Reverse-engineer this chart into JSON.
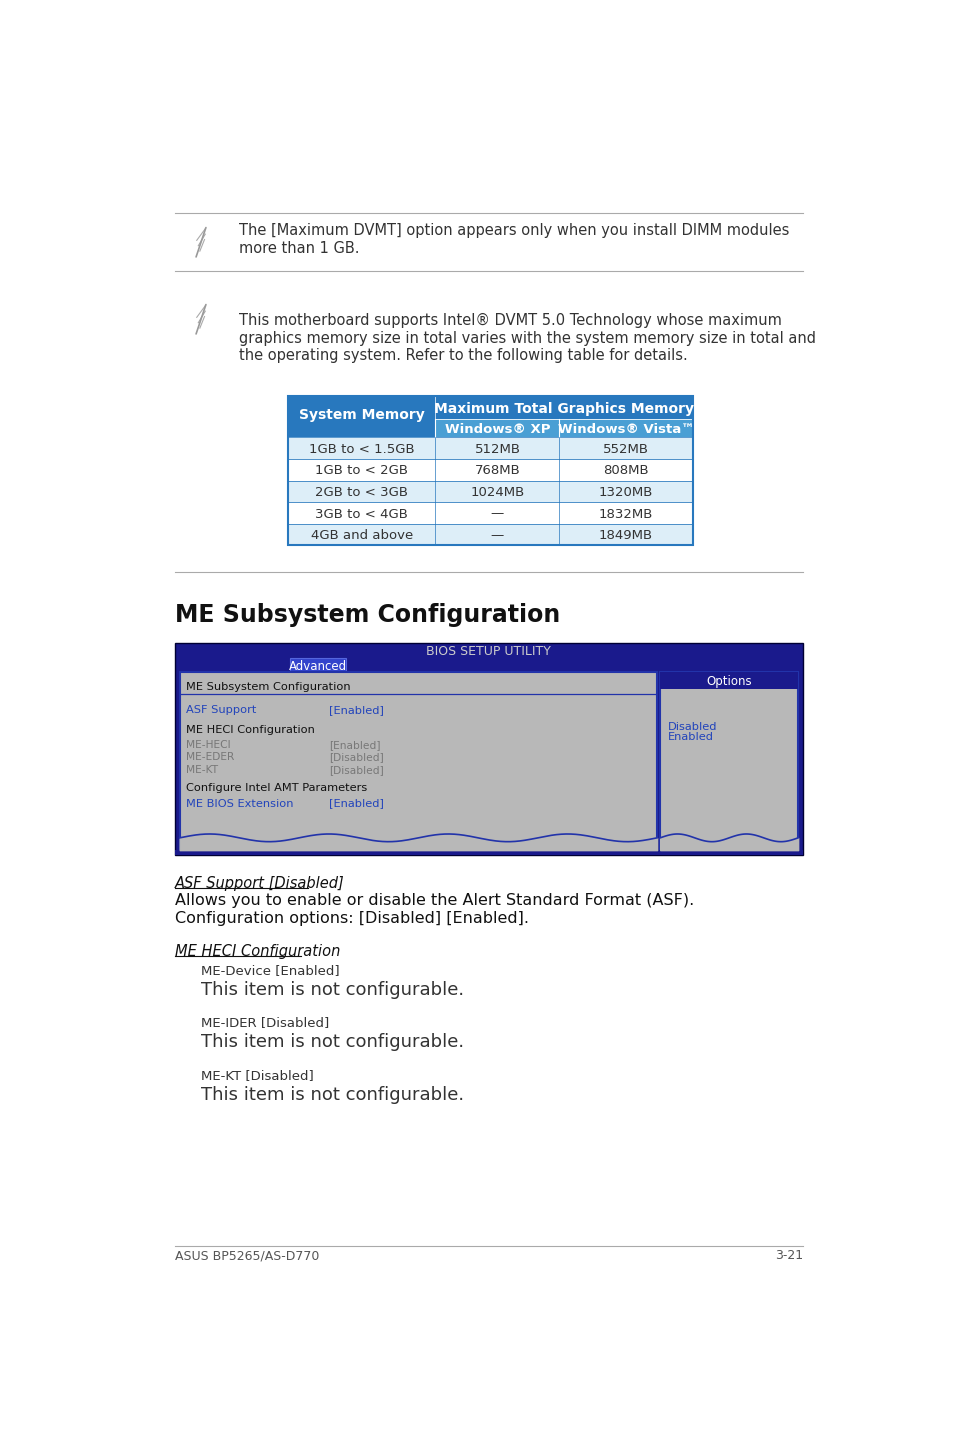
{
  "bg_color": "#ffffff",
  "note1_text": "The [Maximum DVMT] option appears only when you install DIMM modules\nmore than 1 GB.",
  "note2_text": "This motherboard supports Intel® DVMT 5.0 Technology whose maximum\ngraphics memory size in total varies with the system memory size in total and\nthe operating system. Refer to the following table for details.",
  "table_header_bg": "#2878be",
  "table_header2_bg": "#4a9fd4",
  "table_row_bg_alt": "#ddeef8",
  "table_row_bg_white": "#ffffff",
  "table_border": "#2878be",
  "table_col1_header": "System Memory",
  "table_col2_header": "Maximum Total Graphics Memory",
  "table_col2a_header": "Windows® XP",
  "table_col2b_header": "Windows® Vista™",
  "table_rows": [
    [
      "1GB to < 1.5GB",
      "512MB",
      "552MB"
    ],
    [
      "1GB to < 2GB",
      "768MB",
      "808MB"
    ],
    [
      "2GB to < 3GB",
      "1024MB",
      "1320MB"
    ],
    [
      "3GB to < 4GB",
      "—",
      "1832MB"
    ],
    [
      "4GB and above",
      "—",
      "1849MB"
    ]
  ],
  "section_title": "ME Subsystem Configuration",
  "bios_title": "BIOS SETUP UTILITY",
  "bios_tab": "Advanced",
  "bios_bg": "#1a1a8c",
  "bios_options_bar_bg": "#1a1a8c",
  "asf_section_title": "ASF Support [Disabled]",
  "asf_body": "Allows you to enable or disable the Alert Standard Format (ASF).\nConfiguration options: [Disabled] [Enabled].",
  "heci_title": "ME HECI Configuration",
  "heci_items": [
    {
      "label": "ME-Device [Enabled]",
      "desc": "This item is not configurable."
    },
    {
      "label": "ME-IDER [Disabled]",
      "desc": "This item is not configurable."
    },
    {
      "label": "ME-KT [Disabled]",
      "desc": "This item is not configurable."
    }
  ],
  "footer_left": "ASUS BP5265/AS-D770",
  "footer_right": "3-21"
}
